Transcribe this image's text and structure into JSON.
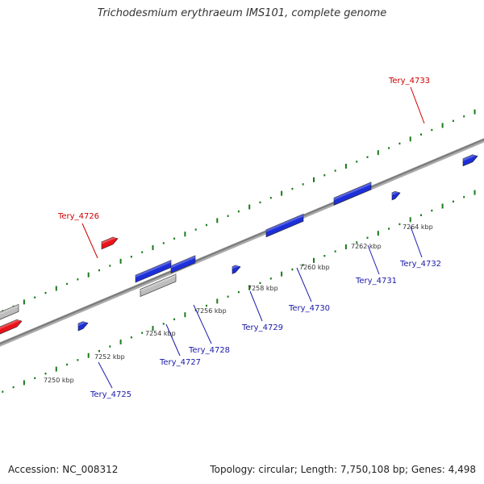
{
  "title": "Trichodesmium erythraeum IMS101, complete genome",
  "footer": {
    "accession": "Accession: NC_008312",
    "summary": "Topology: circular; Length: 7,750,108 bp; Genes: 4,498"
  },
  "colors": {
    "forward_gene": "#e8141a",
    "reverse_gene": "#1c2fd8",
    "other_feature": "#bdbdbd",
    "backbone": "#888888",
    "ticks": "#1a7a1a",
    "label_forward": "#cc0000",
    "label_reverse": "#1a1aaa"
  },
  "scale_labels": [
    "7250 kbp",
    "7252 kbp",
    "7254 kbp",
    "7256 kbp",
    "7258 kbp",
    "7260 kbp",
    "7262 kbp",
    "7264 kbp"
  ],
  "gene_labels": [
    {
      "id": "Tery_4725",
      "strand": "reverse"
    },
    {
      "id": "Tery_4726",
      "strand": "forward"
    },
    {
      "id": "Tery_4727",
      "strand": "reverse"
    },
    {
      "id": "Tery_4728",
      "strand": "reverse"
    },
    {
      "id": "Tery_4729",
      "strand": "reverse"
    },
    {
      "id": "Tery_4730",
      "strand": "reverse"
    },
    {
      "id": "Tery_4731",
      "strand": "reverse"
    },
    {
      "id": "Tery_4732",
      "strand": "reverse"
    },
    {
      "id": "Tery_4733",
      "strand": "forward"
    }
  ]
}
